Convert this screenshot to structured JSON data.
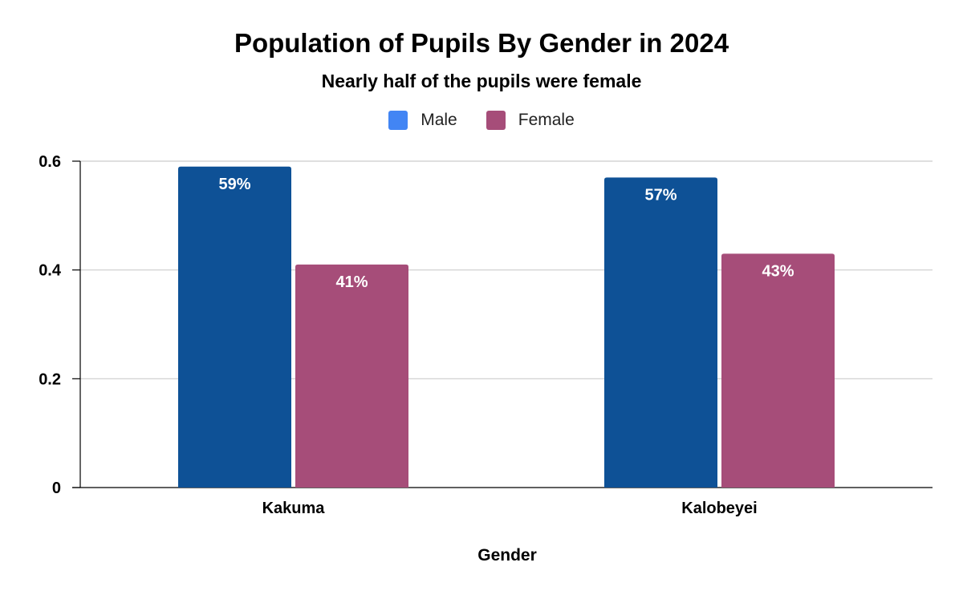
{
  "chart_data": {
    "type": "bar",
    "title": "Population of Pupils By Gender in 2024",
    "subtitle": "Nearly half of the pupils were female",
    "xlabel": "Gender",
    "ylabel": "",
    "categories": [
      "Kakuma",
      "Kalobeyei"
    ],
    "series": [
      {
        "name": "Male",
        "values": [
          0.59,
          0.57
        ],
        "labels": [
          "59%",
          "57%"
        ],
        "bar_color": "#0e5196",
        "legend_color": "#4285f4"
      },
      {
        "name": "Female",
        "values": [
          0.41,
          0.43
        ],
        "labels": [
          "41%",
          "43%"
        ],
        "bar_color": "#a64d79",
        "legend_color": "#a64d79"
      }
    ],
    "ylim": [
      0,
      0.6
    ],
    "yticks": [
      0,
      0.2,
      0.4,
      0.6
    ],
    "ytick_labels": [
      "0",
      "0.2",
      "0.4",
      "0.6"
    ],
    "grid": true,
    "legend_position": "top-center"
  }
}
